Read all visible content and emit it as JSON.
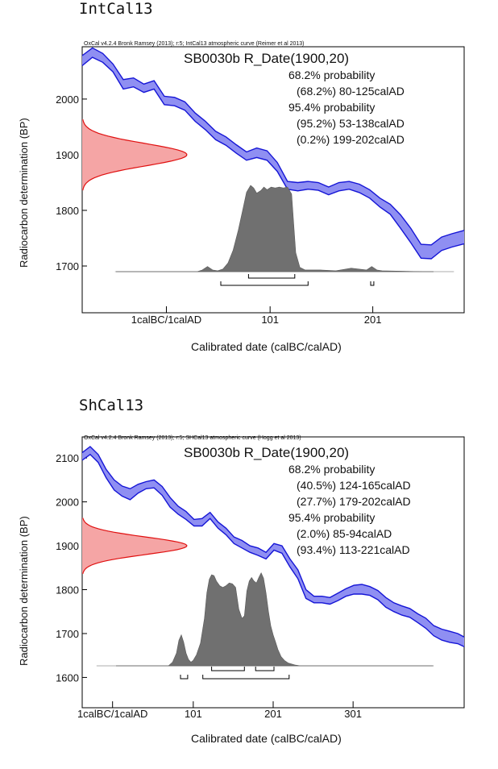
{
  "panels": [
    {
      "title": "IntCal13",
      "credit": "OxCal v4.2.4 Bronk Ramsey (2013); r:5; IntCal13 atmospheric curve (Reimer et al 2013)",
      "sample": "SB0030b R_Date(1900,20)",
      "annotations": [
        "68.2% probability",
        "(68.2%) 80-125calAD",
        "95.4% probability",
        "(95.2%) 53-138calAD",
        "(0.2%) 199-202calAD"
      ],
      "ylabel": "Radiocarbon determination (BP)",
      "xlabel": "Calibrated date (calBC/calAD)",
      "chart_data": {
        "type": "area",
        "xlim": [
          -82,
          290
        ],
        "ylim": [
          1616,
          2094
        ],
        "x_ticks": [
          {
            "x": 0,
            "label": "1calBC/1calAD"
          },
          {
            "x": 101,
            "label": "101"
          },
          {
            "x": 201,
            "label": "201"
          }
        ],
        "y_ticks": [
          1700,
          1800,
          1900,
          2000
        ],
        "measurement": {
          "mean": 1900,
          "sd": 20
        },
        "calibration_curve": {
          "x": [
            -82,
            -72,
            -62,
            -52,
            -42,
            -32,
            -22,
            -12,
            -2,
            8,
            18,
            28,
            38,
            48,
            58,
            68,
            78,
            88,
            98,
            108,
            118,
            128,
            138,
            148,
            158,
            168,
            178,
            188,
            198,
            208,
            218,
            228,
            238,
            248,
            258,
            268,
            278,
            290
          ],
          "upper": [
            2078,
            2092,
            2082,
            2063,
            2035,
            2038,
            2027,
            2033,
            2005,
            2003,
            1995,
            1975,
            1960,
            1942,
            1932,
            1918,
            1905,
            1912,
            1907,
            1886,
            1852,
            1850,
            1852,
            1850,
            1842,
            1850,
            1852,
            1847,
            1837,
            1822,
            1811,
            1792,
            1768,
            1739,
            1738,
            1752,
            1758,
            1764
          ],
          "lower": [
            2060,
            2075,
            2066,
            2049,
            2018,
            2022,
            2012,
            2018,
            1990,
            1988,
            1980,
            1960,
            1945,
            1927,
            1917,
            1903,
            1890,
            1895,
            1890,
            1870,
            1838,
            1835,
            1838,
            1836,
            1828,
            1835,
            1838,
            1832,
            1822,
            1806,
            1793,
            1768,
            1742,
            1714,
            1713,
            1728,
            1734,
            1740
          ]
        },
        "calibrated_distribution": {
          "x": [
            -50,
            30,
            35,
            40,
            45,
            50,
            55,
            60,
            65,
            70,
            75,
            78,
            82,
            85,
            88,
            92,
            95,
            98,
            102,
            106,
            110,
            114,
            118,
            122,
            124,
            126,
            130,
            135,
            150,
            165,
            180,
            195,
            200,
            205,
            210,
            250,
            280
          ],
          "density": [
            0,
            0,
            0.02,
            0.06,
            0.02,
            0.01,
            0.03,
            0.1,
            0.25,
            0.48,
            0.75,
            0.92,
            1.0,
            0.97,
            0.91,
            0.94,
            0.98,
            0.95,
            0.98,
            0.97,
            0.98,
            0.97,
            0.98,
            0.9,
            0.55,
            0.22,
            0.05,
            0.02,
            0.02,
            0.01,
            0.04,
            0.02,
            0.06,
            0.02,
            0.01,
            0,
            0
          ]
        },
        "ranges_68": [
          [
            80,
            125
          ]
        ],
        "ranges_95": [
          [
            53,
            138
          ],
          [
            199,
            202
          ]
        ]
      }
    },
    {
      "title": "ShCal13",
      "credit": "OxCal v4.2.4 Bronk Ramsey (2013); r:5; SHCal13 atmospheric curve (Hogg et al 2013)",
      "sample": "SB0030b R_Date(1900,20)",
      "annotations": [
        "68.2% probability",
        "(40.5%) 124-165calAD",
        "(27.7%) 179-202calAD",
        "95.4% probability",
        "(2.0%) 85-94calAD",
        "(93.4%) 113-221calAD"
      ],
      "ylabel": "Radiocarbon determination (BP)",
      "xlabel": "Calibrated date (calBC/calAD)",
      "chart_data": {
        "type": "area",
        "xlim": [
          -38,
          440
        ],
        "ylim": [
          1531,
          2148
        ],
        "x_ticks": [
          {
            "x": 0,
            "label": "1calBC/1calAD"
          },
          {
            "x": 101,
            "label": "101"
          },
          {
            "x": 201,
            "label": "201"
          },
          {
            "x": 301,
            "label": "301"
          }
        ],
        "y_ticks": [
          1600,
          1700,
          1800,
          1900,
          2000,
          2100
        ],
        "measurement": {
          "mean": 1900,
          "sd": 20
        },
        "calibration_curve": {
          "x": [
            -38,
            -28,
            -18,
            -8,
            2,
            12,
            22,
            32,
            42,
            52,
            62,
            72,
            82,
            92,
            102,
            112,
            122,
            132,
            142,
            152,
            162,
            172,
            182,
            192,
            202,
            212,
            222,
            232,
            242,
            252,
            262,
            272,
            282,
            292,
            302,
            312,
            322,
            332,
            342,
            352,
            362,
            372,
            382,
            392,
            402,
            412,
            422,
            432,
            440
          ],
          "upper": [
            2112,
            2126,
            2108,
            2074,
            2050,
            2036,
            2030,
            2040,
            2046,
            2050,
            2035,
            2010,
            1990,
            1978,
            1960,
            1962,
            1976,
            1954,
            1940,
            1920,
            1912,
            1900,
            1895,
            1885,
            1905,
            1900,
            1870,
            1845,
            1800,
            1785,
            1785,
            1782,
            1792,
            1802,
            1810,
            1812,
            1807,
            1798,
            1782,
            1770,
            1763,
            1757,
            1745,
            1735,
            1718,
            1710,
            1705,
            1700,
            1692
          ],
          "lower": [
            2095,
            2108,
            2090,
            2055,
            2027,
            2013,
            2005,
            2020,
            2030,
            2032,
            2015,
            1988,
            1972,
            1960,
            1945,
            1945,
            1962,
            1940,
            1925,
            1905,
            1895,
            1885,
            1878,
            1870,
            1890,
            1883,
            1852,
            1825,
            1780,
            1770,
            1770,
            1767,
            1775,
            1785,
            1790,
            1790,
            1787,
            1777,
            1760,
            1750,
            1742,
            1737,
            1725,
            1712,
            1695,
            1685,
            1680,
            1677,
            1670
          ]
        },
        "calibrated_distribution": {
          "x": [
            -20,
            60,
            70,
            75,
            80,
            83,
            86,
            89,
            92,
            95,
            98,
            101,
            105,
            110,
            115,
            118,
            121,
            124,
            127,
            130,
            134,
            138,
            142,
            146,
            150,
            154,
            158,
            162,
            165,
            168,
            171,
            174,
            177,
            180,
            183,
            186,
            189,
            192,
            195,
            198,
            201,
            204,
            207,
            211,
            215,
            220,
            228,
            235,
            250,
            400
          ],
          "density": [
            0,
            0,
            0,
            0.04,
            0.14,
            0.28,
            0.34,
            0.26,
            0.14,
            0.07,
            0.04,
            0.06,
            0.12,
            0.25,
            0.52,
            0.8,
            0.95,
            1.0,
            0.99,
            0.93,
            0.88,
            0.86,
            0.88,
            0.91,
            0.9,
            0.86,
            0.62,
            0.52,
            0.55,
            0.82,
            0.93,
            0.97,
            0.93,
            0.91,
            0.97,
            1.02,
            0.96,
            0.8,
            0.6,
            0.44,
            0.34,
            0.26,
            0.18,
            0.1,
            0.06,
            0.03,
            0.01,
            0,
            0,
            0
          ]
        },
        "ranges_68": [
          [
            124,
            165
          ],
          [
            179,
            202
          ]
        ],
        "ranges_95": [
          [
            85,
            94
          ],
          [
            113,
            221
          ]
        ]
      }
    }
  ]
}
